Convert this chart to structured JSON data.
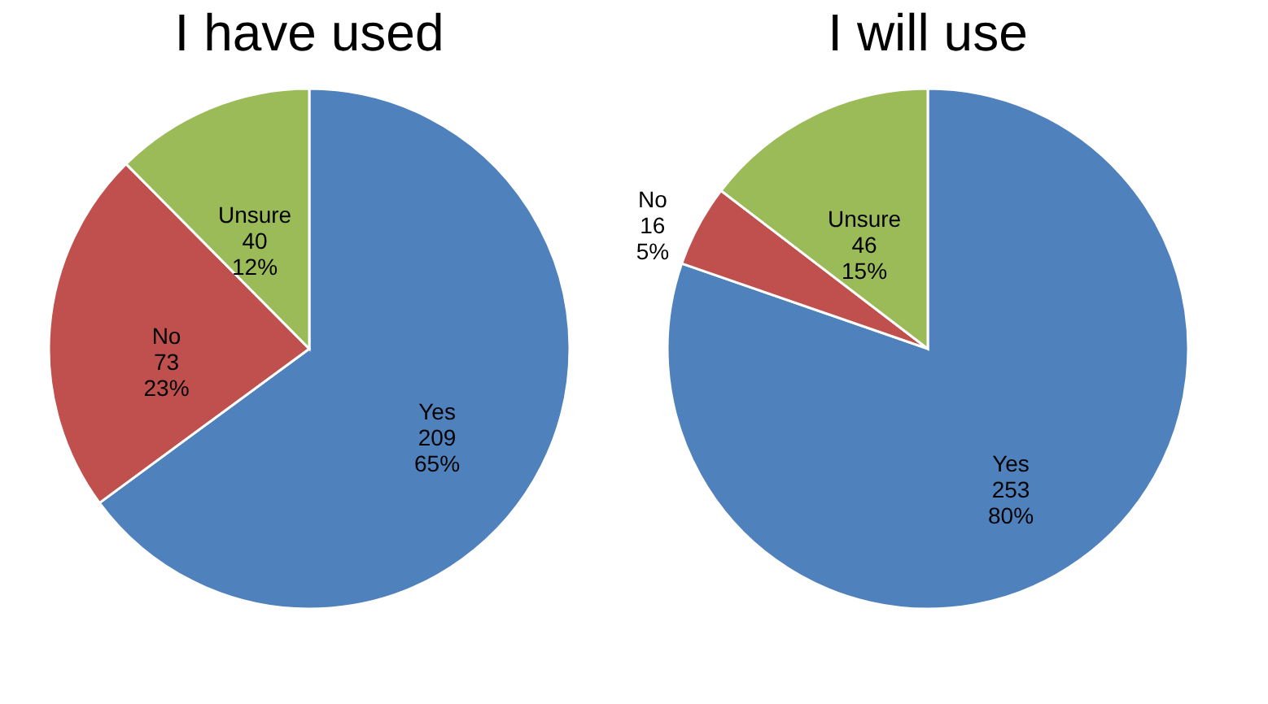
{
  "chart_data": [
    {
      "type": "pie",
      "title": "I have used",
      "categories": [
        "Yes",
        "No",
        "Unsure"
      ],
      "values": [
        209,
        73,
        40
      ],
      "colors": [
        "#4f81bd",
        "#c0504d",
        "#9bbb59"
      ],
      "value_labels": [
        "209\n65%",
        "73\n23%",
        "40\n12%"
      ],
      "legend": false
    },
    {
      "type": "pie",
      "title": "I will use",
      "categories": [
        "Yes",
        "No",
        "Unsure"
      ],
      "values": [
        253,
        16,
        46
      ],
      "colors": [
        "#4f81bd",
        "#c0504d",
        "#9bbb59"
      ],
      "value_labels": [
        "253\n80%",
        "16\n5%",
        "46\n15%"
      ],
      "legend": false
    }
  ]
}
